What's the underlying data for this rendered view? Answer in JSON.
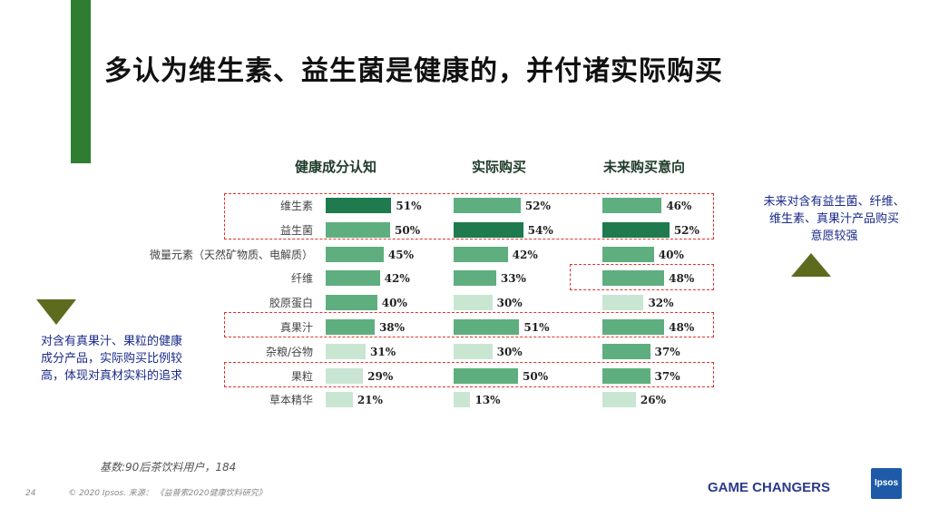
{
  "title": "多认为维生素、益生菌是健康的，并付诸实际购买",
  "chart_data": {
    "type": "bar",
    "categories": [
      "维生素",
      "益生菌",
      "微量元素（天然矿物质、电解质）",
      "纤维",
      "胶原蛋白",
      "真果汁",
      "杂粮/谷物",
      "果粒",
      "草本精华"
    ],
    "series": [
      {
        "name": "健康成分认知",
        "values": [
          51,
          50,
          45,
          42,
          40,
          38,
          31,
          29,
          21
        ],
        "labels": [
          "51%",
          "50%",
          "45%",
          "42%",
          "40%",
          "38%",
          "31%",
          "29%",
          "21%"
        ]
      },
      {
        "name": "实际购买",
        "values": [
          52,
          54,
          42,
          33,
          30,
          51,
          30,
          50,
          13
        ],
        "labels": [
          "52%",
          "54%",
          "42%",
          "33%",
          "30%",
          "51%",
          "30%",
          "50%",
          "13%"
        ]
      },
      {
        "name": "未来购买意向",
        "values": [
          46,
          52,
          40,
          48,
          32,
          48,
          37,
          37,
          26
        ],
        "labels": [
          "46%",
          "52%",
          "40%",
          "48%",
          "32%",
          "48%",
          "37%",
          "37%",
          "26%"
        ]
      }
    ],
    "colors": {
      "dark": "#1f7a4d",
      "mid": "#5fae7f",
      "light": "#c9e6d2"
    },
    "ylim": [
      0,
      100
    ]
  },
  "notes": {
    "left": [
      "对含有真果汁、果粒的健康",
      "成分产品，实际购买比例较",
      "高，体现对真材实料的追求"
    ],
    "right": [
      "未来对含有益生菌、纤维、",
      "维生素、真果汁产品购买",
      "意愿较强"
    ]
  },
  "footer": {
    "base": "基数:90后茶饮料用户，184",
    "page_number": "24",
    "copyright": "© 2020 Ipsos. 来源： 《益普索2020健康饮料研究》",
    "brand": "GAME CHANGERS",
    "logo_text": "Ipsos"
  }
}
